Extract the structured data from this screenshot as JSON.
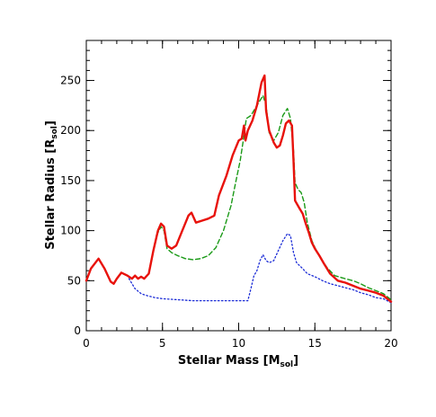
{
  "chart_data": {
    "type": "line",
    "xlabel": "Stellar Mass [M",
    "xlabel_sub": "sol",
    "xlabel_suffix": "]",
    "ylabel": "Stellar Radius [R",
    "ylabel_sub": "sol",
    "ylabel_suffix": "]",
    "xlim": [
      0,
      20
    ],
    "ylim": [
      0,
      290
    ],
    "x_ticks": [
      0,
      5,
      10,
      15,
      20
    ],
    "y_ticks": [
      0,
      50,
      100,
      150,
      200,
      250
    ],
    "x_minor_step": 1,
    "y_minor_step": 10,
    "grid": false,
    "legend": false,
    "series": [
      {
        "color": "#e8120c",
        "style": "solid",
        "points": [
          [
            0.0,
            50
          ],
          [
            0.3,
            62
          ],
          [
            0.8,
            72
          ],
          [
            1.2,
            62
          ],
          [
            1.6,
            49
          ],
          [
            1.8,
            47
          ],
          [
            2.0,
            52
          ],
          [
            2.3,
            58
          ],
          [
            2.7,
            55
          ],
          [
            3.0,
            52
          ],
          [
            3.2,
            55
          ],
          [
            3.4,
            52
          ],
          [
            3.6,
            54
          ],
          [
            3.8,
            52
          ],
          [
            4.1,
            57
          ],
          [
            4.4,
            80
          ],
          [
            4.7,
            100
          ],
          [
            4.9,
            107
          ],
          [
            5.1,
            104
          ],
          [
            5.3,
            85
          ],
          [
            5.6,
            82
          ],
          [
            5.9,
            85
          ],
          [
            6.3,
            100
          ],
          [
            6.7,
            115
          ],
          [
            6.9,
            118
          ],
          [
            7.2,
            108
          ],
          [
            7.6,
            110
          ],
          [
            8.0,
            112
          ],
          [
            8.4,
            115
          ],
          [
            8.7,
            135
          ],
          [
            9.2,
            155
          ],
          [
            9.6,
            175
          ],
          [
            10.0,
            190
          ],
          [
            10.2,
            192
          ],
          [
            10.35,
            205
          ],
          [
            10.45,
            190
          ],
          [
            10.6,
            200
          ],
          [
            10.9,
            210
          ],
          [
            11.2,
            225
          ],
          [
            11.5,
            248
          ],
          [
            11.7,
            255
          ],
          [
            11.8,
            220
          ],
          [
            12.0,
            200
          ],
          [
            12.3,
            188
          ],
          [
            12.5,
            183
          ],
          [
            12.7,
            185
          ],
          [
            12.9,
            195
          ],
          [
            13.1,
            207
          ],
          [
            13.3,
            210
          ],
          [
            13.5,
            205
          ],
          [
            13.6,
            170
          ],
          [
            13.7,
            130
          ],
          [
            14.0,
            122
          ],
          [
            14.2,
            117
          ],
          [
            14.4,
            107
          ],
          [
            14.6,
            98
          ],
          [
            14.8,
            88
          ],
          [
            15.0,
            82
          ],
          [
            15.3,
            75
          ],
          [
            15.6,
            67
          ],
          [
            16.0,
            57
          ],
          [
            16.5,
            50
          ],
          [
            17.0,
            48
          ],
          [
            17.5,
            45
          ],
          [
            18.0,
            42
          ],
          [
            18.5,
            40
          ],
          [
            19.0,
            38
          ],
          [
            19.5,
            35
          ],
          [
            20.0,
            29
          ]
        ]
      },
      {
        "color": "#1a9a17",
        "style": "dashed",
        "points": [
          [
            4.6,
            95
          ],
          [
            4.9,
            104
          ],
          [
            5.1,
            100
          ],
          [
            5.3,
            82
          ],
          [
            5.6,
            78
          ],
          [
            6.0,
            75
          ],
          [
            6.5,
            72
          ],
          [
            7.0,
            71
          ],
          [
            7.5,
            72
          ],
          [
            8.0,
            75
          ],
          [
            8.5,
            83
          ],
          [
            9.0,
            100
          ],
          [
            9.5,
            125
          ],
          [
            9.8,
            148
          ],
          [
            10.1,
            170
          ],
          [
            10.3,
            190
          ],
          [
            10.5,
            212
          ],
          [
            10.6,
            213
          ],
          [
            10.8,
            215
          ],
          [
            11.2,
            225
          ],
          [
            11.6,
            235
          ],
          [
            11.8,
            225
          ],
          [
            12.0,
            198
          ],
          [
            12.3,
            190
          ],
          [
            12.6,
            198
          ],
          [
            12.9,
            215
          ],
          [
            13.2,
            222
          ],
          [
            13.4,
            212
          ],
          [
            13.6,
            180
          ],
          [
            13.7,
            148
          ],
          [
            13.9,
            141
          ],
          [
            14.1,
            138
          ],
          [
            14.3,
            128
          ],
          [
            14.5,
            108
          ],
          [
            14.8,
            90
          ],
          [
            15.1,
            80
          ],
          [
            15.4,
            72
          ],
          [
            15.8,
            63
          ],
          [
            16.3,
            55
          ],
          [
            17.0,
            52
          ],
          [
            17.5,
            50
          ],
          [
            18.0,
            47
          ],
          [
            18.5,
            43
          ],
          [
            19.0,
            40
          ],
          [
            19.5,
            37
          ],
          [
            20.0,
            31
          ]
        ]
      },
      {
        "color": "#1a2bd6",
        "style": "dotted",
        "points": [
          [
            2.8,
            52
          ],
          [
            3.2,
            42
          ],
          [
            3.6,
            37
          ],
          [
            4.0,
            35
          ],
          [
            4.5,
            33
          ],
          [
            5.0,
            32
          ],
          [
            6.0,
            31
          ],
          [
            7.0,
            30
          ],
          [
            8.0,
            30
          ],
          [
            9.0,
            30
          ],
          [
            10.0,
            30
          ],
          [
            10.6,
            30
          ],
          [
            10.8,
            42
          ],
          [
            11.0,
            55
          ],
          [
            11.2,
            60
          ],
          [
            11.4,
            70
          ],
          [
            11.6,
            76
          ],
          [
            11.8,
            70
          ],
          [
            12.0,
            68
          ],
          [
            12.3,
            70
          ],
          [
            12.6,
            80
          ],
          [
            12.9,
            90
          ],
          [
            13.2,
            97
          ],
          [
            13.4,
            95
          ],
          [
            13.6,
            78
          ],
          [
            13.8,
            68
          ],
          [
            14.0,
            65
          ],
          [
            14.2,
            62
          ],
          [
            14.5,
            57
          ],
          [
            15.0,
            54
          ],
          [
            15.5,
            50
          ],
          [
            16.0,
            47
          ],
          [
            16.5,
            45
          ],
          [
            17.0,
            43
          ],
          [
            17.5,
            41
          ],
          [
            18.0,
            38
          ],
          [
            18.5,
            36
          ],
          [
            19.0,
            33
          ],
          [
            19.5,
            32
          ],
          [
            20.0,
            28
          ]
        ]
      }
    ]
  }
}
